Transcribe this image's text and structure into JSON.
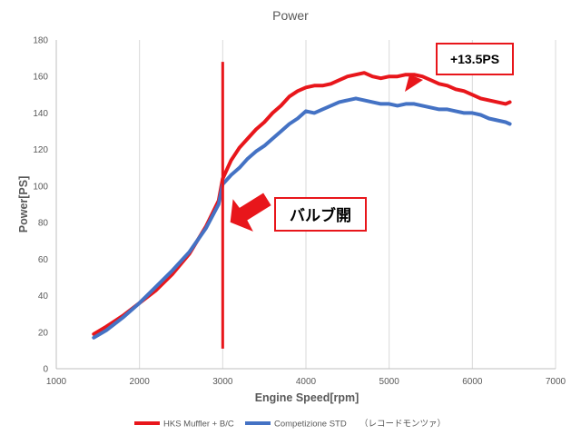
{
  "chart_data": {
    "type": "line",
    "title": "Power",
    "xlabel": "Engine Speed[rpm]",
    "ylabel": "Power[PS]",
    "xlim": [
      1000,
      7000
    ],
    "ylim": [
      0,
      180
    ],
    "x_ticks": [
      1000,
      2000,
      3000,
      4000,
      5000,
      6000,
      7000
    ],
    "y_ticks": [
      0,
      20,
      40,
      60,
      80,
      100,
      120,
      140,
      160,
      180
    ],
    "x_tick_labels": [
      "1000",
      "2000",
      "3000",
      "4000",
      "5000",
      "6000",
      "7000"
    ],
    "y_tick_labels": [
      "0",
      "20",
      "40",
      "60",
      "80",
      "100",
      "120",
      "140",
      "160",
      "180"
    ],
    "grid": "vertical",
    "legend_position": "bottom",
    "legend_note": "（レコードモンツァ）",
    "colors": {
      "hks": "#e8161b",
      "std": "#4472c4",
      "annotation": "#e8161b"
    },
    "series": [
      {
        "name": "HKS Muffler + B/C",
        "color": "#e8161b",
        "x": [
          1450,
          1600,
          1800,
          2000,
          2200,
          2400,
          2600,
          2800,
          2950,
          3000,
          3100,
          3200,
          3300,
          3400,
          3500,
          3600,
          3700,
          3800,
          3900,
          4000,
          4100,
          4200,
          4300,
          4400,
          4500,
          4600,
          4700,
          4800,
          4900,
          5000,
          5100,
          5200,
          5300,
          5400,
          5500,
          5600,
          5700,
          5800,
          5900,
          6000,
          6100,
          6200,
          6300,
          6400,
          6450
        ],
        "values": [
          19,
          23,
          29,
          36,
          43,
          52,
          63,
          78,
          92,
          104,
          114,
          121,
          126,
          131,
          135,
          140,
          144,
          149,
          152,
          154,
          155,
          155,
          156,
          158,
          160,
          161,
          162,
          160,
          159,
          160,
          160,
          161,
          161,
          160,
          158,
          156,
          155,
          153,
          152,
          150,
          148,
          147,
          146,
          145,
          146
        ]
      },
      {
        "name": "Competizione STD",
        "color": "#4472c4",
        "x": [
          1450,
          1600,
          1800,
          2000,
          2200,
          2400,
          2600,
          2800,
          2950,
          3000,
          3100,
          3200,
          3300,
          3400,
          3500,
          3600,
          3700,
          3800,
          3900,
          4000,
          4100,
          4200,
          4300,
          4400,
          4500,
          4600,
          4700,
          4800,
          4900,
          5000,
          5100,
          5200,
          5300,
          5400,
          5500,
          5600,
          5700,
          5800,
          5900,
          6000,
          6100,
          6200,
          6300,
          6400,
          6450
        ],
        "values": [
          17,
          21,
          28,
          36,
          45,
          54,
          64,
          77,
          90,
          101,
          106,
          110,
          115,
          119,
          122,
          126,
          130,
          134,
          137,
          141,
          140,
          142,
          144,
          146,
          147,
          148,
          147,
          146,
          145,
          145,
          144,
          145,
          145,
          144,
          143,
          142,
          142,
          141,
          140,
          140,
          139,
          137,
          136,
          135,
          134
        ]
      }
    ],
    "annotations": [
      {
        "type": "vline",
        "x": 3000,
        "y_from": 11,
        "y_to": 168,
        "color": "#e8161b"
      },
      {
        "type": "callout",
        "label": "バルブ開",
        "point_to": {
          "x": 3000,
          "y": 83
        }
      },
      {
        "type": "callout",
        "label": "+13.5PS",
        "point_to": {
          "x": 5300,
          "y": 158
        }
      }
    ]
  }
}
